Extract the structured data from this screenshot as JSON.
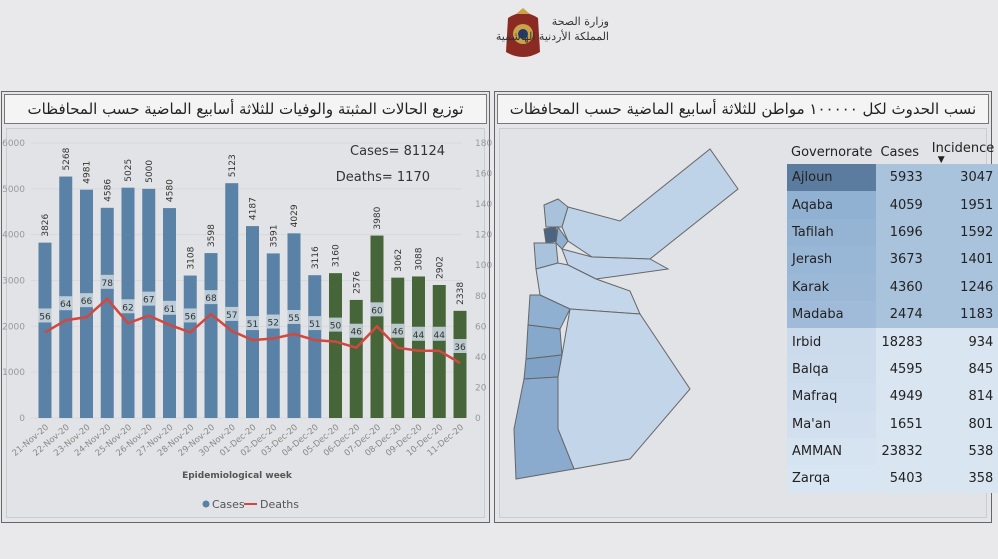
{
  "header": {
    "ministry_line1": "وزارة الصحة",
    "ministry_line2": "المملكة الأردنية الهاشمية"
  },
  "left_panel": {
    "title": "توزيع الحالات المثبتة والوفيات للثلاثة أسابيع الماضية حسب المحافظات"
  },
  "right_panel": {
    "title": "نسب الحدوث لكل ١٠٠٠٠٠ مواطن للثلاثة أسابيع الماضية حسب المحافظات"
  },
  "chart_data": {
    "type": "bar",
    "categories": [
      "21-Nov-20",
      "22-Nov-20",
      "23-Nov-20",
      "24-Nov-20",
      "25-Nov-20",
      "26-Nov-20",
      "27-Nov-20",
      "28-Nov-20",
      "29-Nov-20",
      "30-Nov-20",
      "01-Dec-20",
      "02-Dec-20",
      "03-Dec-20",
      "04-Dec-20",
      "05-Dec-20",
      "06-Dec-20",
      "07-Dec-20",
      "08-Dec-20",
      "09-Dec-20",
      "10-Dec-20",
      "11-Dec-20"
    ],
    "series": [
      {
        "name": "Cases",
        "type": "bar",
        "axis": "left",
        "values": [
          3826,
          5268,
          4981,
          4586,
          5025,
          5000,
          4580,
          3108,
          3598,
          5123,
          4187,
          3591,
          4029,
          3116,
          3160,
          2576,
          3980,
          3062,
          3088,
          2902,
          2338
        ]
      },
      {
        "name": "Deaths",
        "type": "line",
        "axis": "right",
        "values": [
          56,
          64,
          66,
          78,
          62,
          67,
          61,
          56,
          68,
          57,
          51,
          52,
          55,
          51,
          50,
          46,
          60,
          46,
          44,
          44,
          36
        ]
      }
    ],
    "bar_colors": {
      "first_period": "#5a82a6",
      "last_week": "#46663a"
    },
    "last_week_start_index": 14,
    "line_color": "#d0483f",
    "xlabel": "Epidemiological week",
    "ylim": [
      0,
      6000
    ],
    "y2lim": [
      0,
      180
    ],
    "yticks": [
      0,
      1000,
      2000,
      3000,
      4000,
      5000,
      6000
    ],
    "y2ticks": [
      0,
      20,
      40,
      60,
      80,
      100,
      120,
      140,
      160,
      180
    ],
    "legend": {
      "position": "bottom",
      "items": [
        "Cases",
        "Deaths"
      ]
    },
    "annotations": {
      "cases_total": "Cases= 81124",
      "deaths_total": "Deaths= 1170"
    }
  },
  "table": {
    "headers": [
      "Governorate",
      "Cases",
      "Incidence"
    ],
    "sort_indicator": "▼",
    "rows": [
      [
        "Ajloun",
        "5933",
        "3047"
      ],
      [
        "Aqaba",
        "4059",
        "1951"
      ],
      [
        "Tafilah",
        "1696",
        "1592"
      ],
      [
        "Jerash",
        "3673",
        "1401"
      ],
      [
        "Karak",
        "4360",
        "1246"
      ],
      [
        "Madaba",
        "2474",
        "1183"
      ],
      [
        "Irbid",
        "18283",
        "934"
      ],
      [
        "Balqa",
        "4595",
        "845"
      ],
      [
        "Mafraq",
        "4949",
        "814"
      ],
      [
        "Ma'an",
        "1651",
        "801"
      ],
      [
        "AMMAN",
        "23832",
        "538"
      ],
      [
        "Zarqa",
        "5403",
        "358"
      ]
    ]
  }
}
